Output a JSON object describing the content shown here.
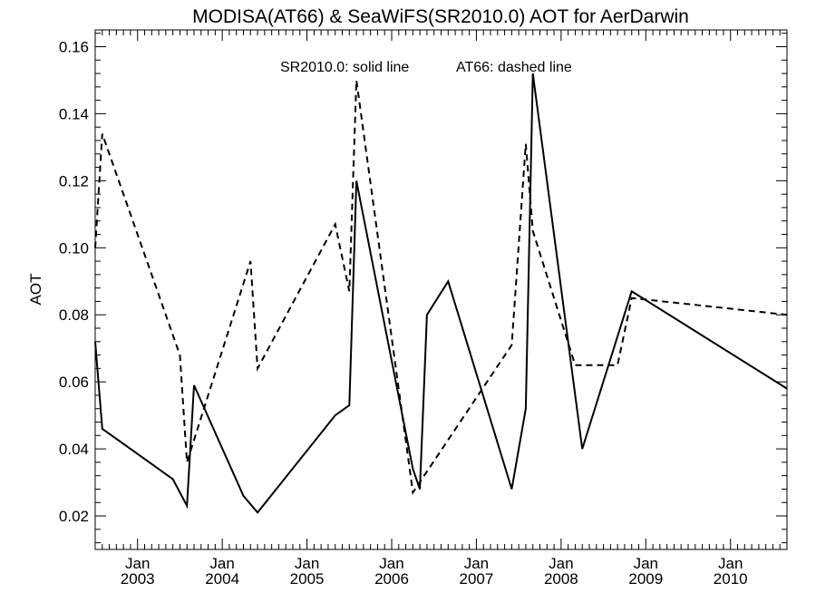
{
  "chart_data": {
    "type": "line",
    "title": "MODISA(AT66) & SeaWiFS(SR2010.0)  AOT for AerDarwin",
    "ylabel": "AOT",
    "xlabel": "",
    "ylim": [
      0.01,
      0.165
    ],
    "xlim": [
      "2002-07-01",
      "2010-09-01"
    ],
    "yticks": [
      0.02,
      0.04,
      0.06,
      0.08,
      0.1,
      0.12,
      0.14,
      0.16
    ],
    "ytick_labels": [
      "0.02",
      "0.04",
      "0.06",
      "0.08",
      "0.10",
      "0.12",
      "0.14",
      "0.16"
    ],
    "xticks": [
      {
        "date": "2003-01-01",
        "month": "Jan",
        "year": "2003"
      },
      {
        "date": "2004-01-01",
        "month": "Jan",
        "year": "2004"
      },
      {
        "date": "2005-01-01",
        "month": "Jan",
        "year": "2005"
      },
      {
        "date": "2006-01-01",
        "month": "Jan",
        "year": "2006"
      },
      {
        "date": "2007-01-01",
        "month": "Jan",
        "year": "2007"
      },
      {
        "date": "2008-01-01",
        "month": "Jan",
        "year": "2008"
      },
      {
        "date": "2009-01-01",
        "month": "Jan",
        "year": "2009"
      },
      {
        "date": "2010-01-01",
        "month": "Jan",
        "year": "2010"
      }
    ],
    "annotations": [
      "SR2010.0: solid line",
      "AT66: dashed line"
    ],
    "grid": false,
    "series": [
      {
        "name": "SR2010.0",
        "style": "solid",
        "color": "#000000",
        "x": [
          "2002-07-01",
          "2002-08-01",
          "2003-06-01",
          "2003-08-01",
          "2003-09-01",
          "2004-04-01",
          "2004-06-01",
          "2005-05-01",
          "2005-07-01",
          "2005-08-01",
          "2006-04-01",
          "2006-05-01",
          "2006-06-01",
          "2006-09-01",
          "2007-06-01",
          "2007-08-01",
          "2007-09-01",
          "2008-04-01",
          "2008-11-01",
          "2010-09-01"
        ],
        "y": [
          0.072,
          0.046,
          0.031,
          0.023,
          0.059,
          0.026,
          0.021,
          0.05,
          0.053,
          0.12,
          0.034,
          0.028,
          0.08,
          0.09,
          0.028,
          0.052,
          0.152,
          0.04,
          0.087,
          0.058
        ]
      },
      {
        "name": "AT66",
        "style": "dashed",
        "color": "#000000",
        "x": [
          "2002-07-01",
          "2002-08-01",
          "2003-07-01",
          "2003-08-01",
          "2004-05-01",
          "2004-06-01",
          "2005-05-01",
          "2005-07-01",
          "2005-08-01",
          "2006-04-01",
          "2007-06-01",
          "2007-08-01",
          "2007-09-01",
          "2008-03-01",
          "2008-09-01",
          "2008-11-01",
          "2010-09-01"
        ],
        "y": [
          0.1,
          0.134,
          0.068,
          0.036,
          0.096,
          0.064,
          0.107,
          0.087,
          0.15,
          0.027,
          0.071,
          0.131,
          0.105,
          0.065,
          0.065,
          0.085,
          0.08
        ]
      }
    ]
  }
}
